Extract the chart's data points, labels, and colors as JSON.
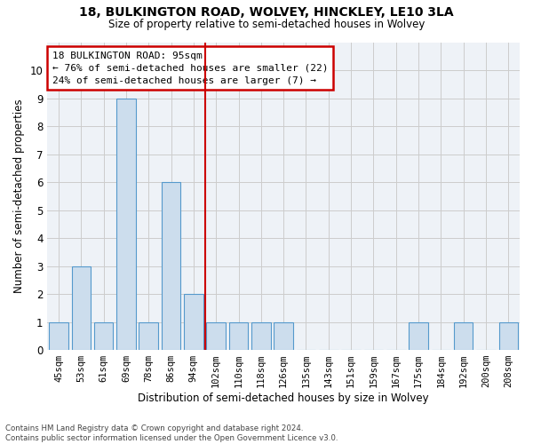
{
  "title1": "18, BULKINGTON ROAD, WOLVEY, HINCKLEY, LE10 3LA",
  "title2": "Size of property relative to semi-detached houses in Wolvey",
  "xlabel": "Distribution of semi-detached houses by size in Wolvey",
  "ylabel": "Number of semi-detached properties",
  "footnote": "Contains HM Land Registry data © Crown copyright and database right 2024.\nContains public sector information licensed under the Open Government Licence v3.0.",
  "categories": [
    "45sqm",
    "53sqm",
    "61sqm",
    "69sqm",
    "78sqm",
    "86sqm",
    "94sqm",
    "102sqm",
    "110sqm",
    "118sqm",
    "126sqm",
    "135sqm",
    "143sqm",
    "151sqm",
    "159sqm",
    "167sqm",
    "175sqm",
    "184sqm",
    "192sqm",
    "200sqm",
    "208sqm"
  ],
  "values": [
    1,
    3,
    1,
    9,
    1,
    6,
    2,
    1,
    1,
    1,
    1,
    0,
    0,
    0,
    0,
    0,
    1,
    0,
    1,
    0,
    1
  ],
  "bar_color": "#ccdded",
  "bar_edge_color": "#5599cc",
  "vline_x_idx": 6.5,
  "annotation_text": "18 BULKINGTON ROAD: 95sqm\n← 76% of semi-detached houses are smaller (22)\n24% of semi-detached houses are larger (7) →",
  "annotation_box_facecolor": "#ffffff",
  "annotation_box_edgecolor": "#cc0000",
  "ylim": [
    0,
    11
  ],
  "yticks": [
    0,
    1,
    2,
    3,
    4,
    5,
    6,
    7,
    8,
    9,
    10,
    11
  ],
  "grid_color": "#cccccc",
  "background_color": "#ffffff",
  "plot_bg_color": "#eef2f7"
}
